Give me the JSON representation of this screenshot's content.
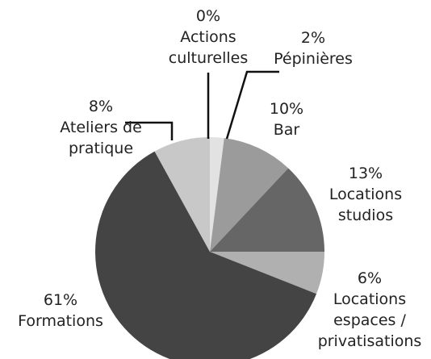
{
  "chart_data": {
    "type": "pie",
    "categories": [
      "Actions culturelles",
      "Pépinières",
      "Bar",
      "Locations studios",
      "Locations espaces / privatisations",
      "Formations",
      "Ateliers de pratique"
    ],
    "values": [
      0,
      2,
      10,
      13,
      6,
      61,
      8
    ],
    "value_labels": [
      "0%",
      "2%",
      "10%",
      "13%",
      "6%",
      "61%",
      "8%"
    ],
    "colors": [
      "#f0f0f0",
      "#e2e2e2",
      "#9b9b9b",
      "#666666",
      "#b0b0b0",
      "#444444",
      "#c8c8c8"
    ]
  }
}
